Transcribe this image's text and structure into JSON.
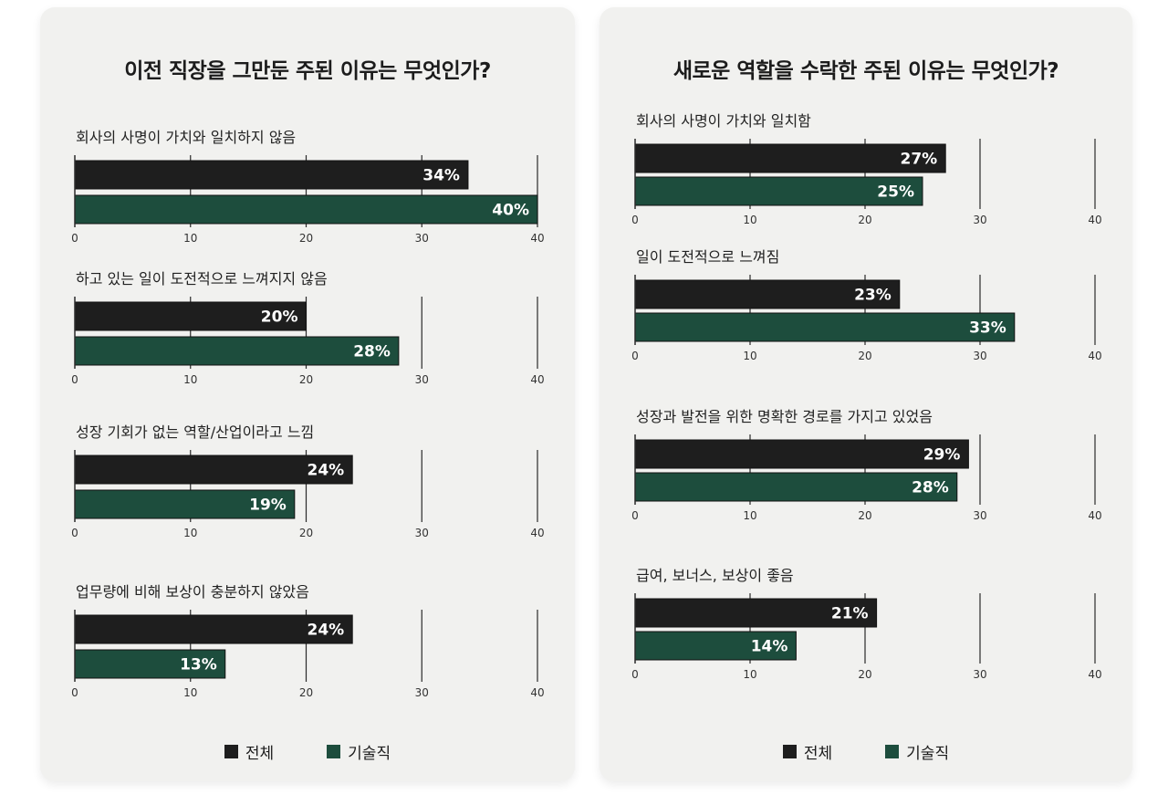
{
  "colors": {
    "overall": "#1e1e1e",
    "tech": "#1d4d3d",
    "axis": "#2a2a2a",
    "panel": "#f1f1ef"
  },
  "legend": {
    "overall_label": "전체",
    "tech_label": "기술직"
  },
  "chart_data": [
    {
      "type": "bar",
      "orientation": "horizontal",
      "title": "이전 직장을 그만둔 주된 이유는 무엇인가?",
      "categories": [
        "회사의 사명이 가치와 일치하지 않음",
        "하고 있는 일이 도전적으로 느껴지지 않음",
        "성장 기회가 없는 역할/산업이라고 느낌",
        "업무량에 비해 보상이 충분하지 않았음"
      ],
      "series": [
        {
          "name": "전체",
          "values": [
            34,
            20,
            24,
            24
          ],
          "labels": [
            "34%",
            "20%",
            "24%",
            "24%"
          ]
        },
        {
          "name": "기술직",
          "values": [
            40,
            28,
            19,
            13
          ],
          "labels": [
            "40%",
            "28%",
            "19%",
            "13%"
          ]
        }
      ],
      "xlim": [
        0,
        40
      ],
      "ticks": [
        "0",
        "10",
        "20",
        "30",
        "40"
      ],
      "legend": "bottom"
    },
    {
      "type": "bar",
      "orientation": "horizontal",
      "title": "새로운 역할을 수락한 주된 이유는 무엇인가?",
      "categories": [
        "회사의 사명이 가치와 일치함",
        "일이 도전적으로 느껴짐",
        "성장과 발전을 위한 명확한 경로를 가지고 있었음",
        "급여, 보너스, 보상이 좋음"
      ],
      "series": [
        {
          "name": "전체",
          "values": [
            27,
            23,
            29,
            21
          ],
          "labels": [
            "27%",
            "23%",
            "29%",
            "21%"
          ]
        },
        {
          "name": "기술직",
          "values": [
            25,
            33,
            28,
            14
          ],
          "labels": [
            "25%",
            "33%",
            "28%",
            "14%"
          ]
        }
      ],
      "xlim": [
        0,
        40
      ],
      "ticks": [
        "0",
        "10",
        "20",
        "30",
        "40"
      ],
      "legend": "bottom"
    }
  ]
}
